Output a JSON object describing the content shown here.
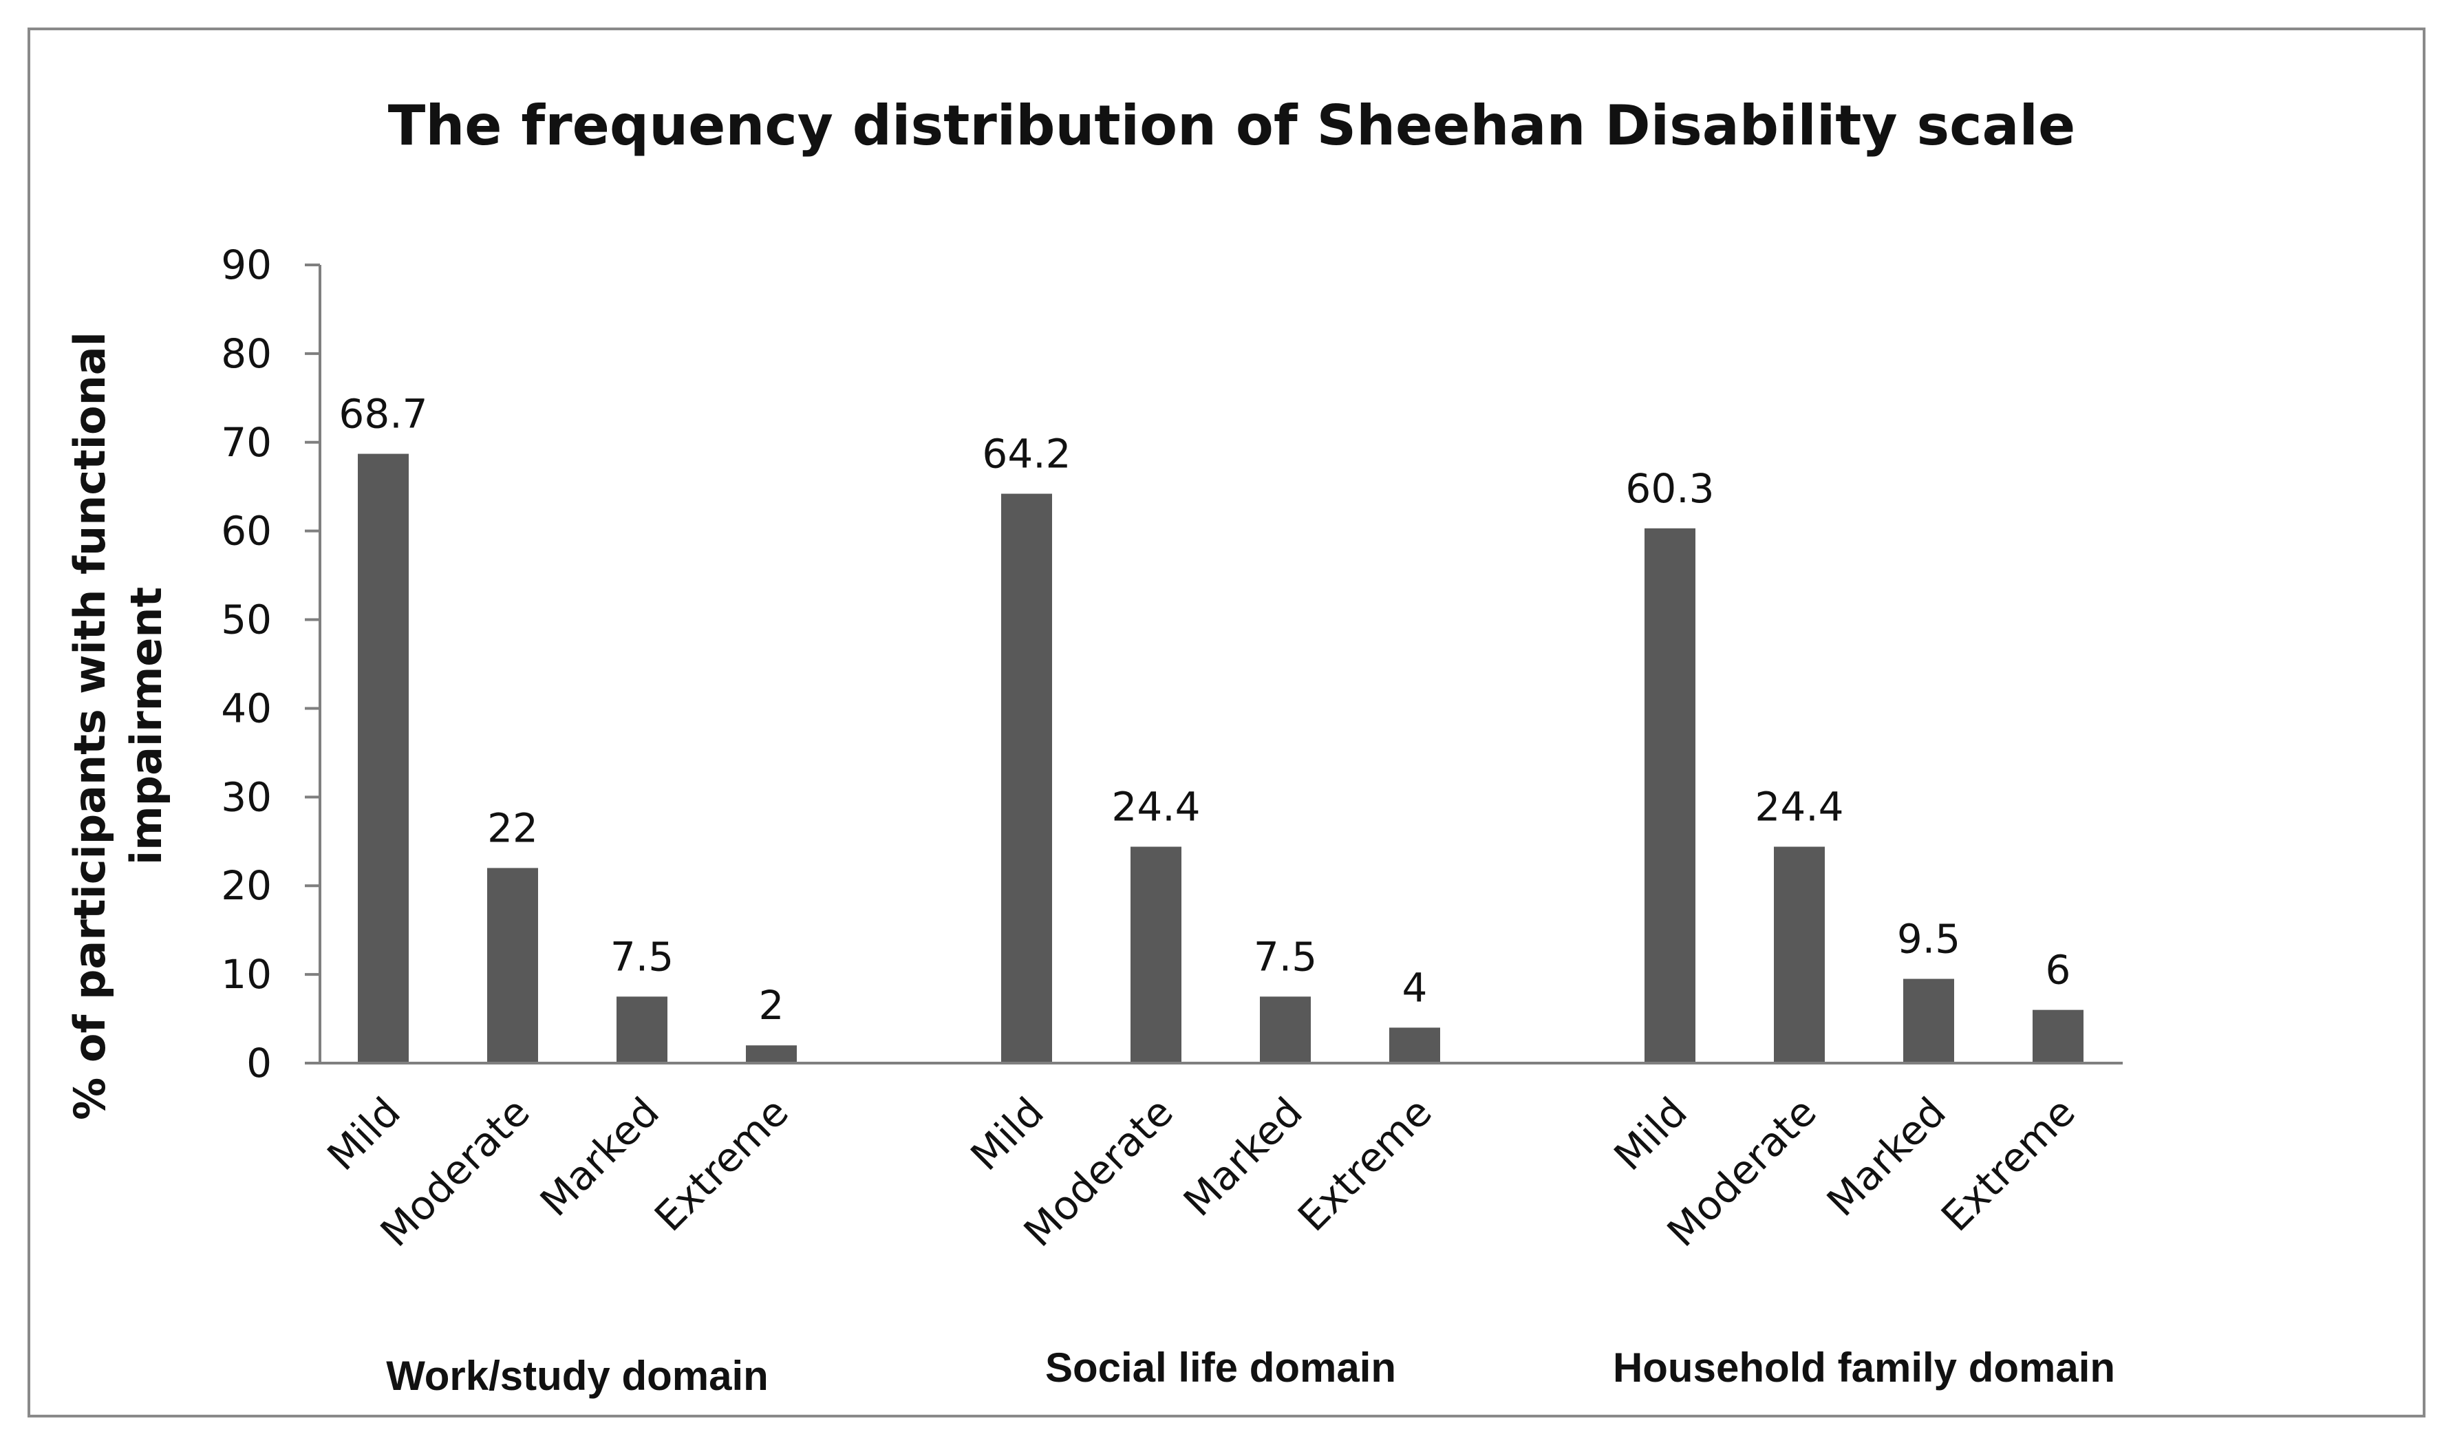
{
  "chart_data": {
    "type": "bar",
    "title": "The frequency distribution of Sheehan Disability scale",
    "ylabel_lines": [
      "% of participants with functional",
      "impairment"
    ],
    "xlabel": "",
    "ylim": [
      0,
      90
    ],
    "yticks": [
      "0",
      "10",
      "20",
      "30",
      "40",
      "50",
      "60",
      "70",
      "80",
      "90"
    ],
    "grid": false,
    "legend": "none",
    "bar_color": "#595959",
    "groups": [
      {
        "name": "Work/study domain",
        "categories": [
          "Mild",
          "Moderate",
          "Marked",
          "Extreme"
        ],
        "values": [
          68.7,
          22,
          7.5,
          2
        ],
        "labels": [
          "68.7",
          "22",
          "7.5",
          "2"
        ]
      },
      {
        "name": "Social life domain",
        "categories": [
          "Mild",
          "Moderate",
          "Marked",
          "Extreme"
        ],
        "values": [
          64.2,
          24.4,
          7.5,
          4
        ],
        "labels": [
          "64.2",
          "24.4",
          "7.5",
          "4"
        ]
      },
      {
        "name": "Household  family domain",
        "categories": [
          "Mild",
          "Moderate",
          "Marked",
          "Extreme"
        ],
        "values": [
          60.3,
          24.4,
          9.5,
          6
        ],
        "labels": [
          "60.3",
          "24.4",
          "9.5",
          "6"
        ]
      }
    ]
  }
}
